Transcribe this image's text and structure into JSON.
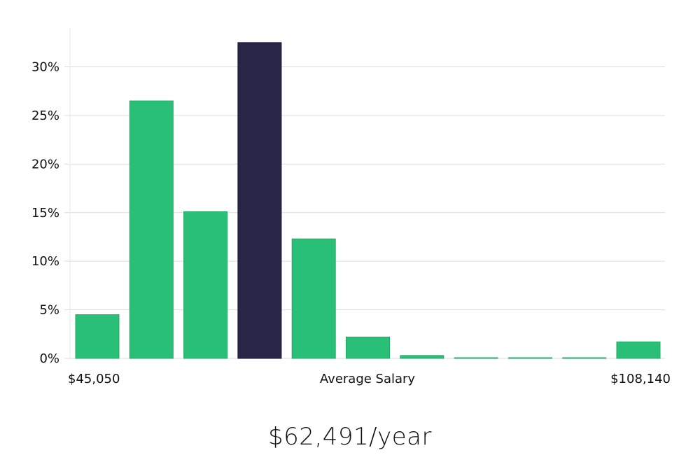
{
  "chart_data": {
    "type": "bar",
    "title": "",
    "xlabel": "Average Salary",
    "ylabel": "",
    "x_min_label": "$45,050",
    "x_max_label": "$108,140",
    "ylim": [
      0,
      34
    ],
    "yticks": [
      0,
      5,
      10,
      15,
      20,
      25,
      30
    ],
    "ytick_suffix": "%",
    "grid": true,
    "values": [
      4.5,
      26.5,
      15.1,
      32.5,
      12.3,
      2.2,
      0.3,
      0.05,
      0.05,
      0.05,
      1.7
    ],
    "highlight_index": 3,
    "colors": {
      "bar": "#2abf76",
      "bar_stroke": "#22a865",
      "highlight": "#282546",
      "highlight_stroke": "#15123a"
    }
  },
  "summary": {
    "salary_text": "$62,491/year"
  }
}
